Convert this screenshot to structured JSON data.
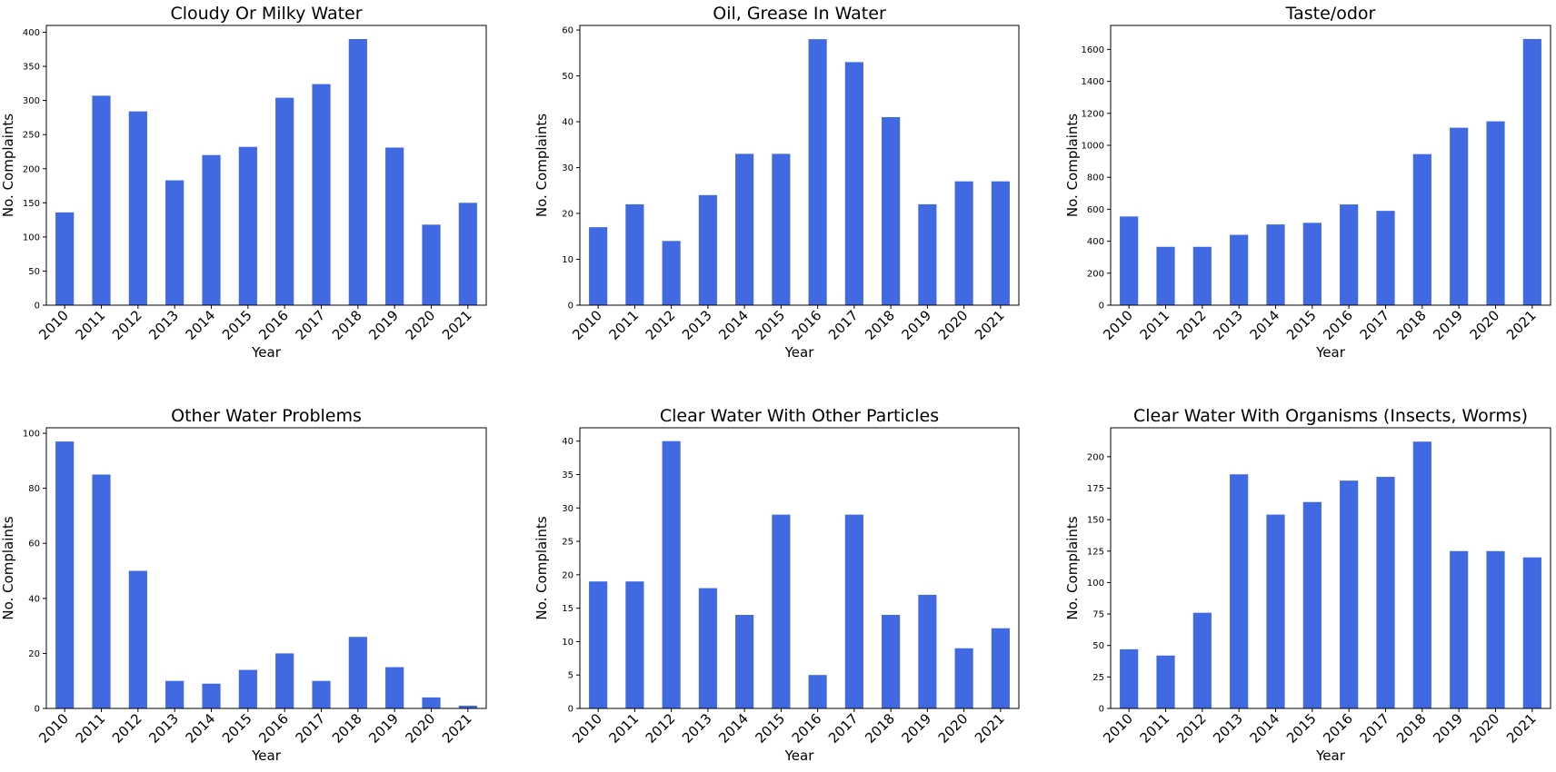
{
  "chart_data": [
    {
      "type": "bar",
      "title": "Cloudy Or Milky Water",
      "xlabel": "Year",
      "ylabel": "No. Complaints",
      "categories": [
        "2010",
        "2011",
        "2012",
        "2013",
        "2014",
        "2015",
        "2016",
        "2017",
        "2018",
        "2019",
        "2020",
        "2021"
      ],
      "values": [
        136,
        307,
        284,
        183,
        220,
        232,
        304,
        324,
        390,
        231,
        118,
        150
      ],
      "ylim": [
        0,
        410
      ],
      "yticks": [
        0,
        50,
        100,
        150,
        200,
        250,
        300,
        350,
        400
      ],
      "color": "#4169E1"
    },
    {
      "type": "bar",
      "title": "Oil, Grease In Water",
      "xlabel": "Year",
      "ylabel": "No. Complaints",
      "categories": [
        "2010",
        "2011",
        "2012",
        "2013",
        "2014",
        "2015",
        "2016",
        "2017",
        "2018",
        "2019",
        "2020",
        "2021"
      ],
      "values": [
        17,
        22,
        14,
        24,
        33,
        33,
        58,
        53,
        41,
        22,
        27,
        27
      ],
      "ylim": [
        0,
        61
      ],
      "yticks": [
        0,
        10,
        20,
        30,
        40,
        50,
        60
      ],
      "color": "#4169E1"
    },
    {
      "type": "bar",
      "title": "Taste/odor",
      "xlabel": "Year",
      "ylabel": "No. Complaints",
      "categories": [
        "2010",
        "2011",
        "2012",
        "2013",
        "2014",
        "2015",
        "2016",
        "2017",
        "2018",
        "2019",
        "2020",
        "2021"
      ],
      "values": [
        555,
        365,
        365,
        440,
        505,
        515,
        630,
        590,
        945,
        1110,
        1150,
        1665
      ],
      "ylim": [
        0,
        1750
      ],
      "yticks": [
        0,
        200,
        400,
        600,
        800,
        1000,
        1200,
        1400,
        1600
      ],
      "color": "#4169E1"
    },
    {
      "type": "bar",
      "title": "Other Water Problems",
      "xlabel": "Year",
      "ylabel": "No. Complaints",
      "categories": [
        "2010",
        "2011",
        "2012",
        "2013",
        "2014",
        "2015",
        "2016",
        "2017",
        "2018",
        "2019",
        "2020",
        "2021"
      ],
      "values": [
        97,
        85,
        50,
        10,
        9,
        14,
        20,
        10,
        26,
        15,
        4,
        1
      ],
      "ylim": [
        0,
        102
      ],
      "yticks": [
        0,
        20,
        40,
        60,
        80,
        100
      ],
      "color": "#4169E1"
    },
    {
      "type": "bar",
      "title": "Clear Water With Other Particles",
      "xlabel": "Year",
      "ylabel": "No. Complaints",
      "categories": [
        "2010",
        "2011",
        "2012",
        "2013",
        "2014",
        "2015",
        "2016",
        "2017",
        "2018",
        "2019",
        "2020",
        "2021"
      ],
      "values": [
        19,
        19,
        40,
        18,
        14,
        29,
        5,
        29,
        14,
        17,
        9,
        12
      ],
      "ylim": [
        0,
        42
      ],
      "yticks": [
        0,
        5,
        10,
        15,
        20,
        25,
        30,
        35,
        40
      ],
      "color": "#4169E1"
    },
    {
      "type": "bar",
      "title": "Clear Water With Organisms (Insects, Worms)",
      "xlabel": "Year",
      "ylabel": "No. Complaints",
      "categories": [
        "2010",
        "2011",
        "2012",
        "2013",
        "2014",
        "2015",
        "2016",
        "2017",
        "2018",
        "2019",
        "2020",
        "2021"
      ],
      "values": [
        47,
        42,
        76,
        186,
        154,
        164,
        181,
        184,
        212,
        125,
        125,
        120
      ],
      "ylim": [
        0,
        223
      ],
      "yticks": [
        0,
        25,
        50,
        75,
        100,
        125,
        150,
        175,
        200
      ],
      "color": "#4169E1"
    }
  ]
}
